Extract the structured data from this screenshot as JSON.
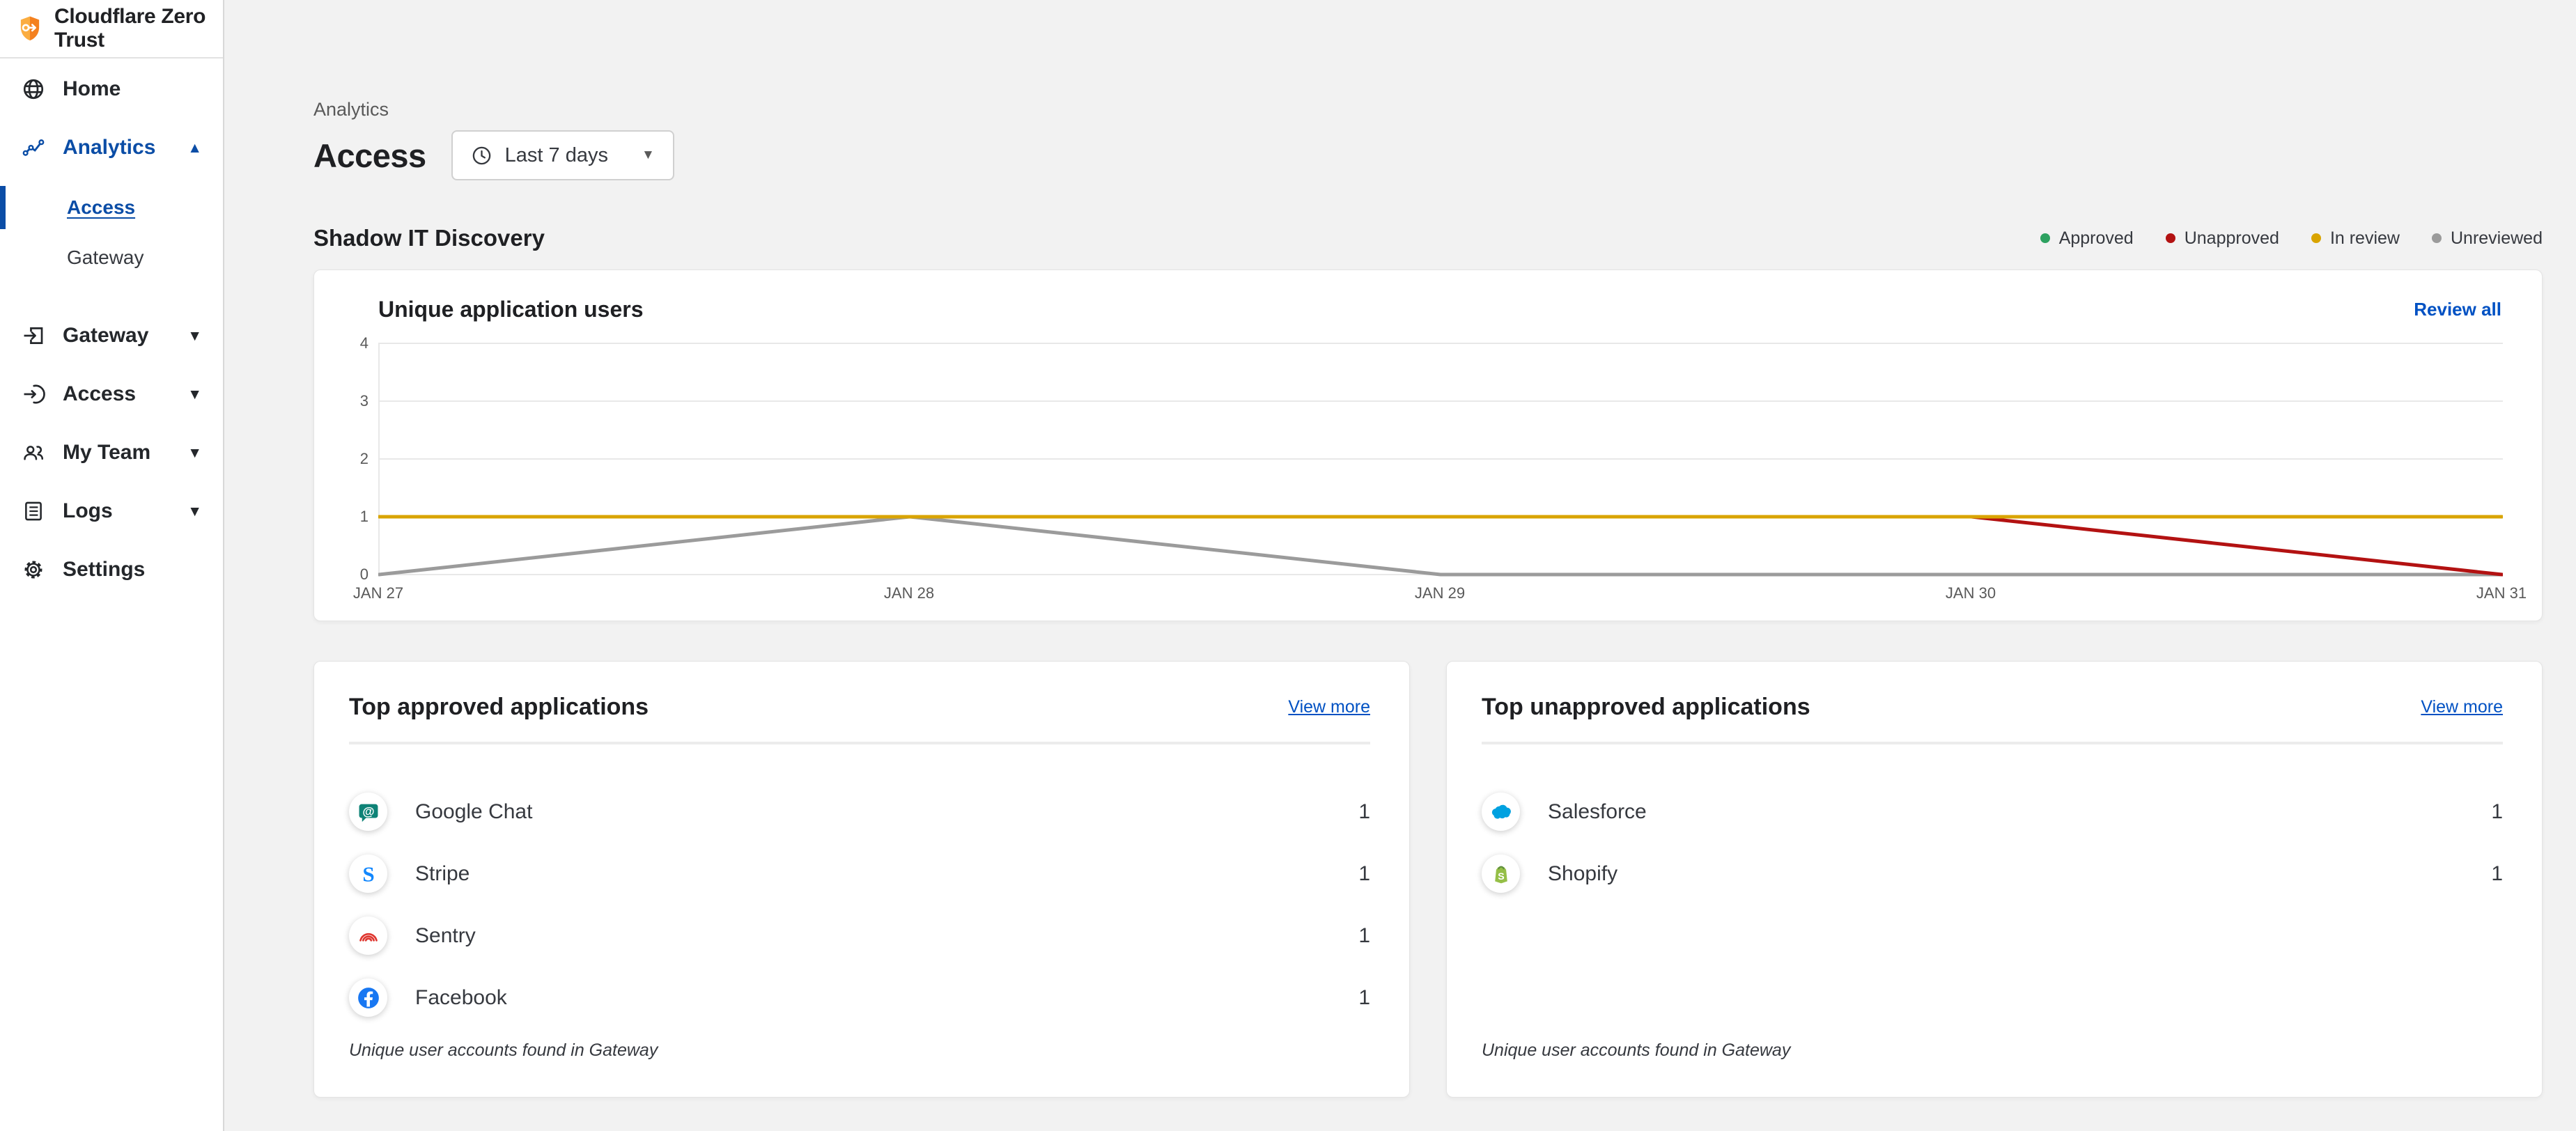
{
  "app": {
    "title": "Cloudflare Zero Trust"
  },
  "sidebar": {
    "items": [
      {
        "label": "Home",
        "icon": "globe",
        "chevron": null,
        "active": false
      },
      {
        "label": "Analytics",
        "icon": "trend",
        "chevron": "up",
        "active": true,
        "children": [
          {
            "label": "Access",
            "active": true
          },
          {
            "label": "Gateway",
            "active": false
          }
        ]
      },
      {
        "label": "Gateway",
        "icon": "gateway",
        "chevron": "down",
        "active": false
      },
      {
        "label": "Access",
        "icon": "login",
        "chevron": "down",
        "active": false
      },
      {
        "label": "My Team",
        "icon": "team",
        "chevron": "down",
        "active": false
      },
      {
        "label": "Logs",
        "icon": "logs",
        "chevron": "down",
        "active": false
      },
      {
        "label": "Settings",
        "icon": "gear",
        "chevron": null,
        "active": false
      }
    ]
  },
  "header": {
    "breadcrumb": "Analytics",
    "title": "Access",
    "time_range": "Last 7 days"
  },
  "section": {
    "title": "Shadow IT Discovery",
    "legend": [
      {
        "label": "Approved",
        "color": "#2da160"
      },
      {
        "label": "Unapproved",
        "color": "#b31212"
      },
      {
        "label": "In review",
        "color": "#d9a400"
      },
      {
        "label": "Unreviewed",
        "color": "#9b9b9b"
      }
    ]
  },
  "chart_card": {
    "title": "Unique application users",
    "action": "Review all"
  },
  "chart_data": {
    "type": "line",
    "title": "Unique application users",
    "x": [
      "JAN 27",
      "JAN 28",
      "JAN 29",
      "JAN 30",
      "JAN 31"
    ],
    "ylim": [
      0,
      4
    ],
    "yticks": [
      0,
      1,
      2,
      3,
      4
    ],
    "grid": true,
    "legend_position": "top-right",
    "series": [
      {
        "name": "Unreviewed",
        "color": "#9b9b9b",
        "values": [
          0,
          1,
          0,
          0,
          0
        ]
      },
      {
        "name": "Unapproved",
        "color": "#b31212",
        "values": [
          null,
          null,
          null,
          1,
          0
        ]
      },
      {
        "name": "In review",
        "color": "#d9a400",
        "values": [
          1,
          1,
          1,
          1,
          1
        ]
      }
    ]
  },
  "approved_card": {
    "title": "Top approved applications",
    "action": "View more",
    "rows": [
      {
        "name": "Google Chat",
        "icon": "googlechat",
        "count": "1"
      },
      {
        "name": "Stripe",
        "icon": "stripe",
        "count": "1"
      },
      {
        "name": "Sentry",
        "icon": "sentry",
        "count": "1"
      },
      {
        "name": "Facebook",
        "icon": "facebook",
        "count": "1"
      }
    ],
    "footnote": "Unique user accounts found in Gateway"
  },
  "unapproved_card": {
    "title": "Top unapproved applications",
    "action": "View more",
    "rows": [
      {
        "name": "Salesforce",
        "icon": "salesforce",
        "count": "1"
      },
      {
        "name": "Shopify",
        "icon": "shopify",
        "count": "1"
      }
    ],
    "footnote": "Unique user accounts found in Gateway"
  },
  "colors": {
    "accent_blue": "#0051c3",
    "sidebar_blue": "#0b4da6",
    "background": "#f2f2f2",
    "gold_line": "#d9a400",
    "red_line": "#b31212",
    "gray_line": "#9b9b9b",
    "brand_orange": "#f6821f"
  }
}
